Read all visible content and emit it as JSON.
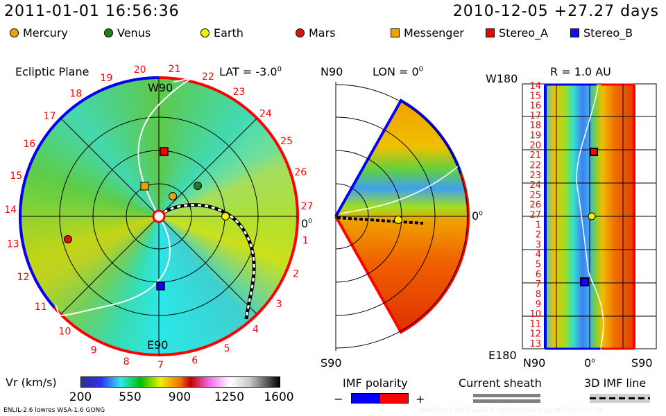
{
  "header": {
    "datetime": "2011-01-01 16:56:36",
    "reference": "2010-12-05 +27.27 days"
  },
  "legend": [
    {
      "label": "Mercury",
      "shape": "circle",
      "color": "#f0a000"
    },
    {
      "label": "Venus",
      "shape": "circle",
      "color": "#208020"
    },
    {
      "label": "Earth",
      "shape": "circle",
      "color": "#f0f000"
    },
    {
      "label": "Mars",
      "shape": "circle",
      "color": "#e01010"
    },
    {
      "label": "Messenger",
      "shape": "square",
      "color": "#f0a000"
    },
    {
      "label": "Stereo_A",
      "shape": "square",
      "color": "#f00000"
    },
    {
      "label": "Stereo_B",
      "shape": "square",
      "color": "#1010f0"
    }
  ],
  "ecliptic": {
    "title": "Ecliptic Plane",
    "top_label": "W90",
    "bottom_label": "E90",
    "right_label": "0",
    "right_label_sup": "0",
    "lat_label": "LAT = -3.0",
    "lat_sup": "0"
  },
  "meridional": {
    "top_label": "N90",
    "bottom_label": "S90",
    "lon_label": "LON = 0",
    "lon_sup": "0",
    "right_label": "0",
    "right_label_sup": "0"
  },
  "radial": {
    "title": "R = 1.0 AU",
    "top_label": "W180",
    "bottom_label": "E180",
    "x_left": "N90",
    "x_mid": "0",
    "x_mid_sup": "o",
    "x_right": "S90"
  },
  "day_labels": [
    "14",
    "15",
    "16",
    "17",
    "18",
    "19",
    "20",
    "21",
    "22",
    "23",
    "24",
    "25",
    "26",
    "27",
    "1",
    "2",
    "3",
    "4",
    "5",
    "6",
    "7",
    "8",
    "9",
    "10",
    "11",
    "12",
    "13"
  ],
  "chart_data": {
    "type": "heatmap",
    "quantity": "Vr (km/s)",
    "colorbar": {
      "label": "Vr (km/s)",
      "ticks": [
        "200",
        "550",
        "900",
        "1250",
        "1600"
      ],
      "range": [
        200,
        1600
      ],
      "colors": [
        "#303090",
        "#3030f0",
        "#30e8f0",
        "#00c000",
        "#f0f000",
        "#f07000",
        "#c00000",
        "#f070f0",
        "#ffffff",
        "#c8c8c8",
        "#606060",
        "#000000"
      ]
    }
  },
  "bottom_legend": {
    "imf_title": "IMF polarity",
    "imf_minus": "−",
    "imf_plus": "+",
    "imf_neg_color": "#0000ff",
    "imf_pos_color": "#ff0000",
    "sheath_title": "Current sheath",
    "imf_line_title": "3D IMF line"
  },
  "footer": {
    "model": "ENLIL-2.6 lowres WSA-1.6 GONG",
    "run_id": ".//64x15x45.2068-a2b2.4-mp1umn1de-1.g15q0   2010-12-28"
  }
}
